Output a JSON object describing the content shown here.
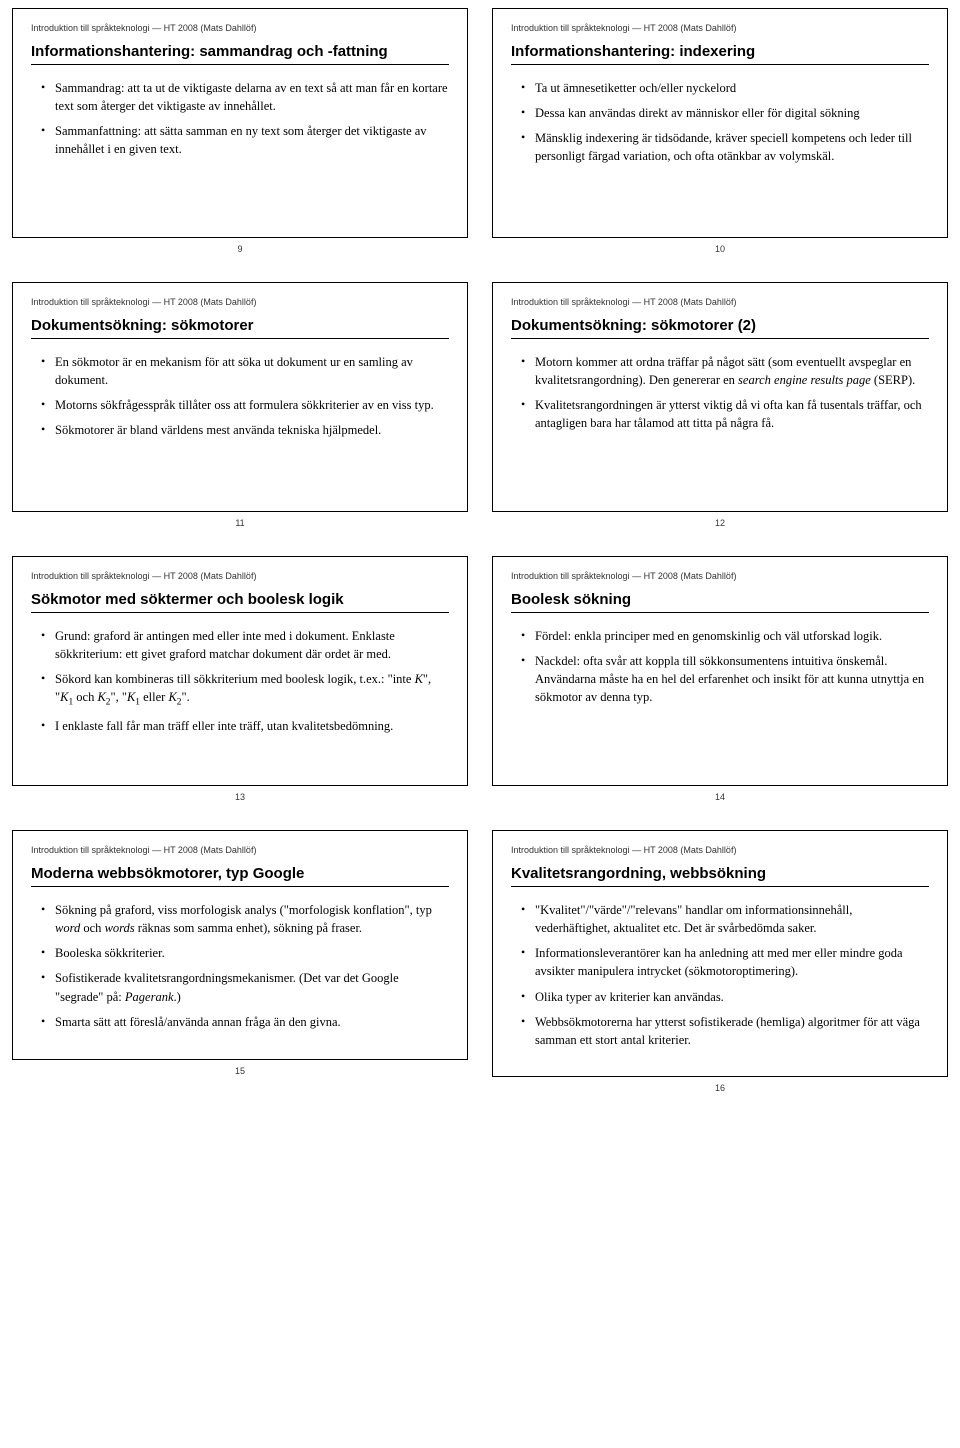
{
  "header_text": "Introduktion till språkteknologi — HT 2008 (Mats Dahllöf)",
  "slides": [
    {
      "title": "Informationshantering: sammandrag och -fattning",
      "page": "9",
      "bullets": [
        "Sammandrag: att ta ut de viktigaste delarna av en text så att man får en kortare text som återger det viktigaste av innehållet.",
        "Sammanfattning: att sätta samman en ny text som återger det viktigaste av innehållet i en given text."
      ]
    },
    {
      "title": "Informationshantering: indexering",
      "page": "10",
      "bullets": [
        "Ta ut ämnesetiketter och/eller nyckelord",
        "Dessa kan användas direkt av människor eller för digital sökning",
        "Mänsklig indexering är tidsödande, kräver speciell kompetens och leder till personligt färgad variation, och ofta otänkbar av volymskäl."
      ]
    },
    {
      "title": "Dokumentsökning: sökmotorer",
      "page": "11",
      "bullets": [
        "En sökmotor är en mekanism för att söka ut dokument ur en samling av dokument.",
        "Motorns sökfrågesspråk tillåter oss att formulera sökkriterier av en viss typ.",
        "Sökmotorer är bland världens mest använda tekniska hjälpmedel."
      ]
    },
    {
      "title": "Dokumentsökning: sökmotorer (2)",
      "page": "12",
      "bullets_html": [
        "Motorn kommer att ordna träffar på något sätt (som eventuellt avspeglar en kvalitetsrangordning). Den genererar en <span class=\"italic\">search engine results page</span> (SERP).",
        "Kvalitetsrangordningen är ytterst viktig då vi ofta kan få tusentals träffar, och antagligen bara har tålamod att titta på några få."
      ]
    },
    {
      "title": "Sökmotor med söktermer och boolesk logik",
      "page": "13",
      "bullets_html": [
        "Grund: graford är antingen med eller inte med i dokument. Enklaste sökkriterium: ett givet graford matchar dokument där ordet är med.",
        "Sökord kan kombineras till sökkriterium med boolesk logik, t.ex.: \"inte <span class=\"italic\">K</span>\", \"<span class=\"italic\">K</span><sub>1</sub> och <span class=\"italic\">K</span><sub>2</sub>\", \"<span class=\"italic\">K</span><sub>1</sub> eller <span class=\"italic\">K</span><sub>2</sub>\".",
        "I enklaste fall får man träff eller inte träff, utan kvalitetsbedömning."
      ]
    },
    {
      "title": "Boolesk sökning",
      "page": "14",
      "bullets": [
        "Fördel: enkla principer med en genomskinlig och väl utforskad logik.",
        "Nackdel: ofta svår att koppla till sökkonsumentens intuitiva önskemål. Användarna måste ha en hel del erfarenhet och insikt för att kunna utnyttja en sökmotor av denna typ."
      ]
    },
    {
      "title": "Moderna webbsökmotorer, typ Google",
      "page": "15",
      "bullets_html": [
        "Sökning på graford, viss morfologisk analys (\"morfologisk konflation\", typ <span class=\"italic\">word</span> och <span class=\"italic\">words</span> räknas som samma enhet), sökning på fraser.",
        "Booleska sökkriterier.",
        "Sofistikerade kvalitetsrangordningsmekanismer. (Det var det Google \"segrade\" på: <span class=\"italic\">Pagerank</span>.)",
        "Smarta sätt att föreslå/använda annan fråga än den givna."
      ]
    },
    {
      "title": "Kvalitetsrangordning, webbsökning",
      "page": "16",
      "bullets": [
        "\"Kvalitet\"/\"värde\"/\"relevans\" handlar om informationsinnehåll, vederhäftighet, aktualitet etc. Det är svårbedömda saker.",
        "Informationsleverantörer kan ha anledning att med mer eller mindre goda avsikter manipulera intrycket (sökmotoroptimering).",
        "Olika typer av kriterier kan användas.",
        "Webbsökmotorerna har ytterst sofistikerade (hemliga) algoritmer för att väga samman ett stort antal kriterier."
      ]
    }
  ]
}
